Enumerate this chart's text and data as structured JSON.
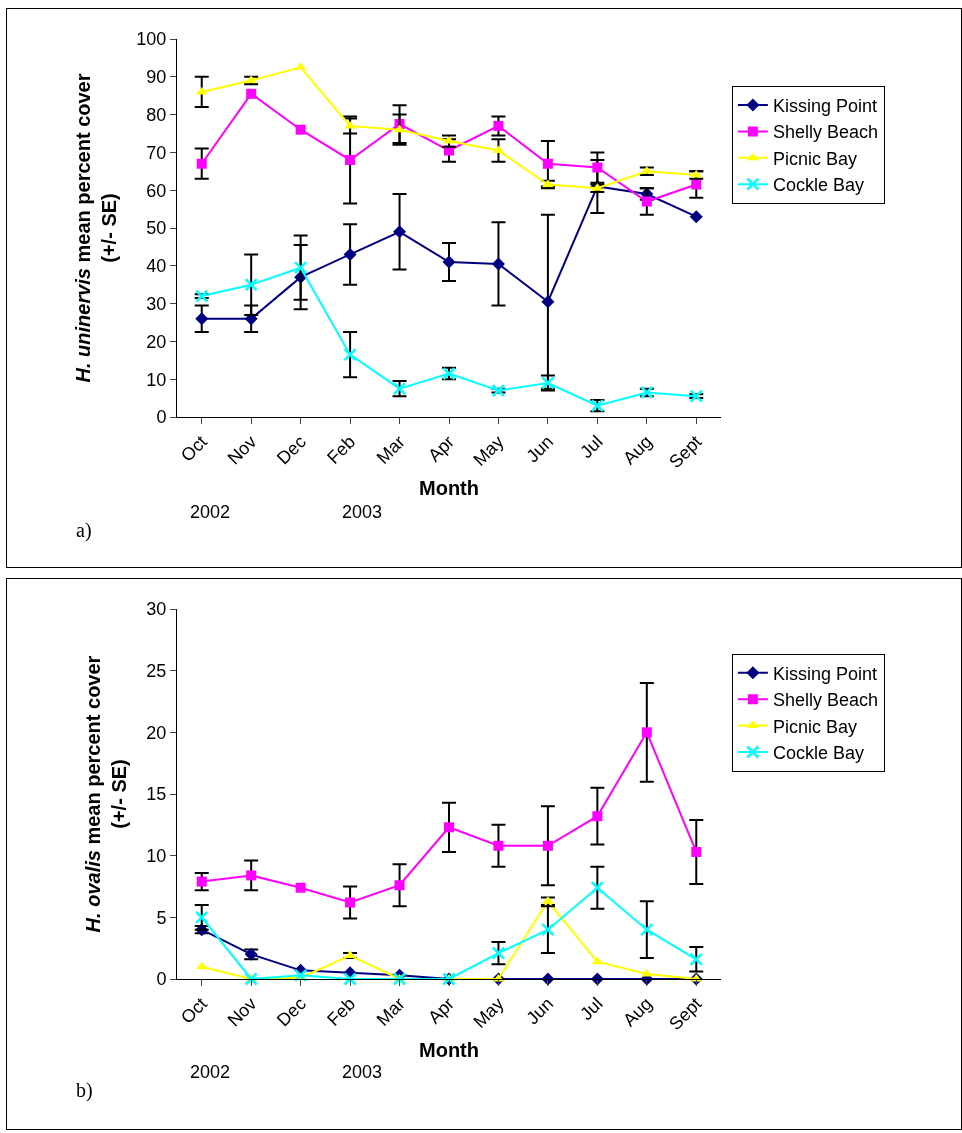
{
  "chart_data": [
    {
      "type": "line",
      "xlabel": "Month",
      "ylabel": "H. uninervis mean percent cover (+/- SE)",
      "categories": [
        "Oct",
        "Nov",
        "Dec",
        "Feb",
        "Mar",
        "Apr",
        "May",
        "Jun",
        "Jul",
        "Aug",
        "Sept"
      ],
      "series": [
        {
          "name": "Kissing Point",
          "color": "#000080",
          "marker": "diamond",
          "values": [
            26,
            26,
            37,
            43,
            49,
            41,
            40.5,
            30.5,
            61,
            59,
            53
          ],
          "errors": [
            3.5,
            3.5,
            8.5,
            8,
            10,
            5,
            11,
            23,
            7,
            1.5,
            null
          ]
        },
        {
          "name": "Shelly Beach",
          "color": "#ff00ff",
          "marker": "square",
          "values": [
            67,
            85.5,
            76,
            68,
            77.5,
            70.5,
            77,
            67,
            66,
            57,
            61.5
          ],
          "errors": [
            4,
            null,
            null,
            11.5,
            5,
            3,
            2.5,
            6,
            4,
            3.5,
            3.5
          ]
        },
        {
          "name": "Picnic Bay",
          "color": "#ffff00",
          "marker": "triangle",
          "values": [
            86,
            89,
            92.5,
            77,
            76,
            73,
            70.5,
            61.5,
            60.5,
            65,
            64
          ],
          "errors": [
            4,
            1,
            null,
            2,
            4,
            1.5,
            3,
            1,
            1,
            1,
            1
          ]
        },
        {
          "name": "Cockle Bay",
          "color": "#00ffff",
          "marker": "cross",
          "values": [
            32,
            35,
            39.5,
            16.5,
            7.5,
            11.5,
            7,
            9,
            3,
            6.5,
            5.5
          ],
          "errors": [
            0.5,
            8,
            8.5,
            6,
            2,
            1.5,
            0.5,
            2,
            1.5,
            1,
            0.5
          ]
        }
      ],
      "ylim": [
        0,
        100
      ],
      "yticks": [
        0,
        10,
        20,
        30,
        40,
        50,
        60,
        70,
        80,
        90,
        100
      ],
      "grid": false,
      "legend": "right",
      "annotations": [
        "a)",
        "2002",
        "2003"
      ]
    },
    {
      "type": "line",
      "xlabel": "Month",
      "ylabel": "H. ovalis mean percent cover (+/- SE)",
      "categories": [
        "Oct",
        "Nov",
        "Dec",
        "Feb",
        "Mar",
        "Apr",
        "May",
        "Jun",
        "Jul",
        "Aug",
        "Sept"
      ],
      "series": [
        {
          "name": "Kissing Point",
          "color": "#000080",
          "marker": "diamond",
          "values": [
            4,
            2,
            0.7,
            0.5,
            0.3,
            0,
            0,
            0,
            0,
            0,
            0
          ],
          "errors": [
            0.3,
            0.4,
            null,
            null,
            null,
            null,
            null,
            null,
            null,
            null,
            null
          ]
        },
        {
          "name": "Shelly Beach",
          "color": "#ff00ff",
          "marker": "square",
          "values": [
            7.9,
            8.4,
            7.4,
            6.2,
            7.6,
            12.3,
            10.8,
            10.8,
            13.2,
            20,
            10.3
          ],
          "errors": [
            0.7,
            1.2,
            null,
            1.3,
            1.7,
            2,
            1.7,
            3.2,
            2.3,
            4,
            2.6
          ]
        },
        {
          "name": "Picnic Bay",
          "color": "#ffff00",
          "marker": "triangle",
          "values": [
            1,
            0,
            0.1,
            1.9,
            0,
            0,
            0,
            6.3,
            1.4,
            0.4,
            0
          ],
          "errors": [
            null,
            null,
            null,
            0.2,
            null,
            null,
            null,
            0.3,
            null,
            null,
            null
          ]
        },
        {
          "name": "Cockle Bay",
          "color": "#00ffff",
          "marker": "cross",
          "values": [
            5,
            0,
            0.3,
            0,
            0,
            0,
            2.1,
            4,
            7.4,
            4,
            1.6
          ],
          "errors": [
            1,
            null,
            null,
            null,
            null,
            null,
            0.9,
            1.9,
            1.7,
            2.3,
            1
          ]
        }
      ],
      "ylim": [
        0,
        30
      ],
      "yticks": [
        0,
        5,
        10,
        15,
        20,
        25,
        30
      ],
      "grid": false,
      "legend": "right",
      "annotations": [
        "b)",
        "2002",
        "2003"
      ]
    }
  ]
}
